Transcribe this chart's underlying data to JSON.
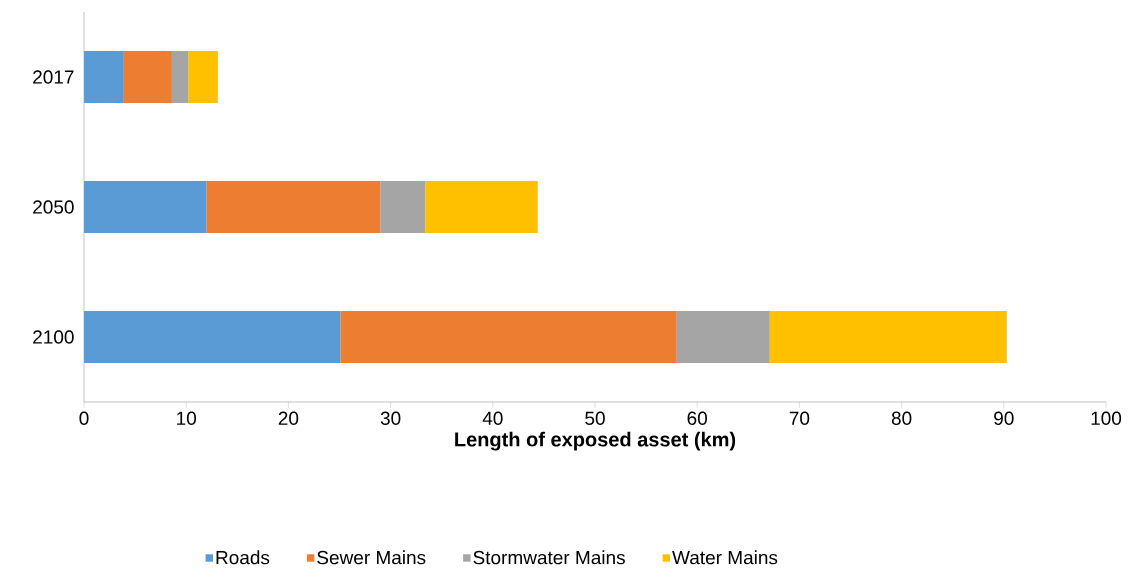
{
  "chart_data": {
    "type": "bar",
    "orientation": "horizontal",
    "stacked": true,
    "xlabel": "Length of exposed asset (km)",
    "categories": [
      "2017",
      "2050",
      "2100"
    ],
    "series": [
      {
        "name": "Roads",
        "color": "#5b9bd5",
        "values": [
          3.9,
          12.0,
          25.1
        ]
      },
      {
        "name": "Sewer Mains",
        "color": "#ed7d31",
        "values": [
          4.7,
          17.0,
          32.9
        ]
      },
      {
        "name": "Stormwater Mains",
        "color": "#a5a5a5",
        "values": [
          1.6,
          4.4,
          9.1
        ]
      },
      {
        "name": "Water Mains",
        "color": "#ffc000",
        "values": [
          2.9,
          11.0,
          23.2
        ]
      }
    ],
    "xlim": [
      0,
      100
    ],
    "xticks": [
      0,
      10,
      20,
      30,
      40,
      50,
      60,
      70,
      80,
      90,
      100
    ],
    "grid": false,
    "legend": "bottom"
  }
}
